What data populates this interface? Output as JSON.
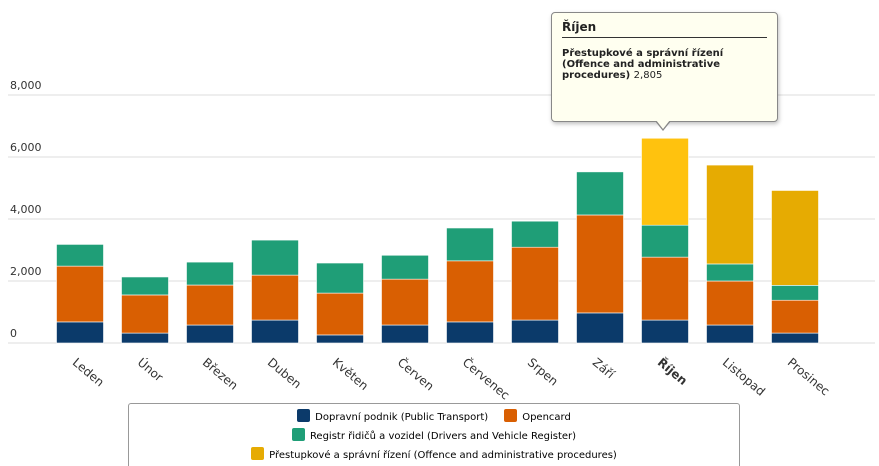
{
  "chart_data": {
    "type": "stacked_bar",
    "categories": [
      "Leden",
      "Únor",
      "Březen",
      "Duben",
      "Květen",
      "Červen",
      "Červenec",
      "Srpen",
      "Září",
      "Říjen",
      "Listopad",
      "Prosinec"
    ],
    "series": [
      {
        "name": "Dopravní podnik (Public Transport)",
        "color": "#0b3a6a",
        "values": [
          680,
          320,
          580,
          740,
          260,
          580,
          680,
          740,
          970,
          740,
          580,
          320
        ]
      },
      {
        "name": "Opencard",
        "color": "#d95f02",
        "values": [
          1800,
          1230,
          1290,
          1450,
          1350,
          1480,
          1970,
          2350,
          3160,
          2030,
          1420,
          1060
        ]
      },
      {
        "name": "Registr řidičů a vozidel (Drivers and Vehicle Register)",
        "color": "#1f9e77",
        "values": [
          700,
          580,
          740,
          1130,
          970,
          770,
          1060,
          840,
          1390,
          1030,
          550,
          480
        ]
      },
      {
        "name": "Přestupkové a správní řízení (Offence and administrative procedures)",
        "color": "#e6ab02",
        "values": [
          0,
          0,
          0,
          0,
          0,
          0,
          0,
          0,
          0,
          2805,
          3190,
          3060
        ],
        "value_labels": [
          null,
          null,
          null,
          null,
          null,
          null,
          null,
          null,
          null,
          "2,805",
          null,
          null
        ]
      }
    ],
    "ylim": [
      0,
      8000
    ],
    "yticks": [
      {
        "value": 0,
        "label": "0"
      },
      {
        "value": 2000,
        "label": "2,000"
      },
      {
        "value": 4000,
        "label": "4,000"
      },
      {
        "value": 6000,
        "label": "6,000"
      },
      {
        "value": 8000,
        "label": "8,000"
      }
    ],
    "grid": true,
    "highlight": 9
  }
}
